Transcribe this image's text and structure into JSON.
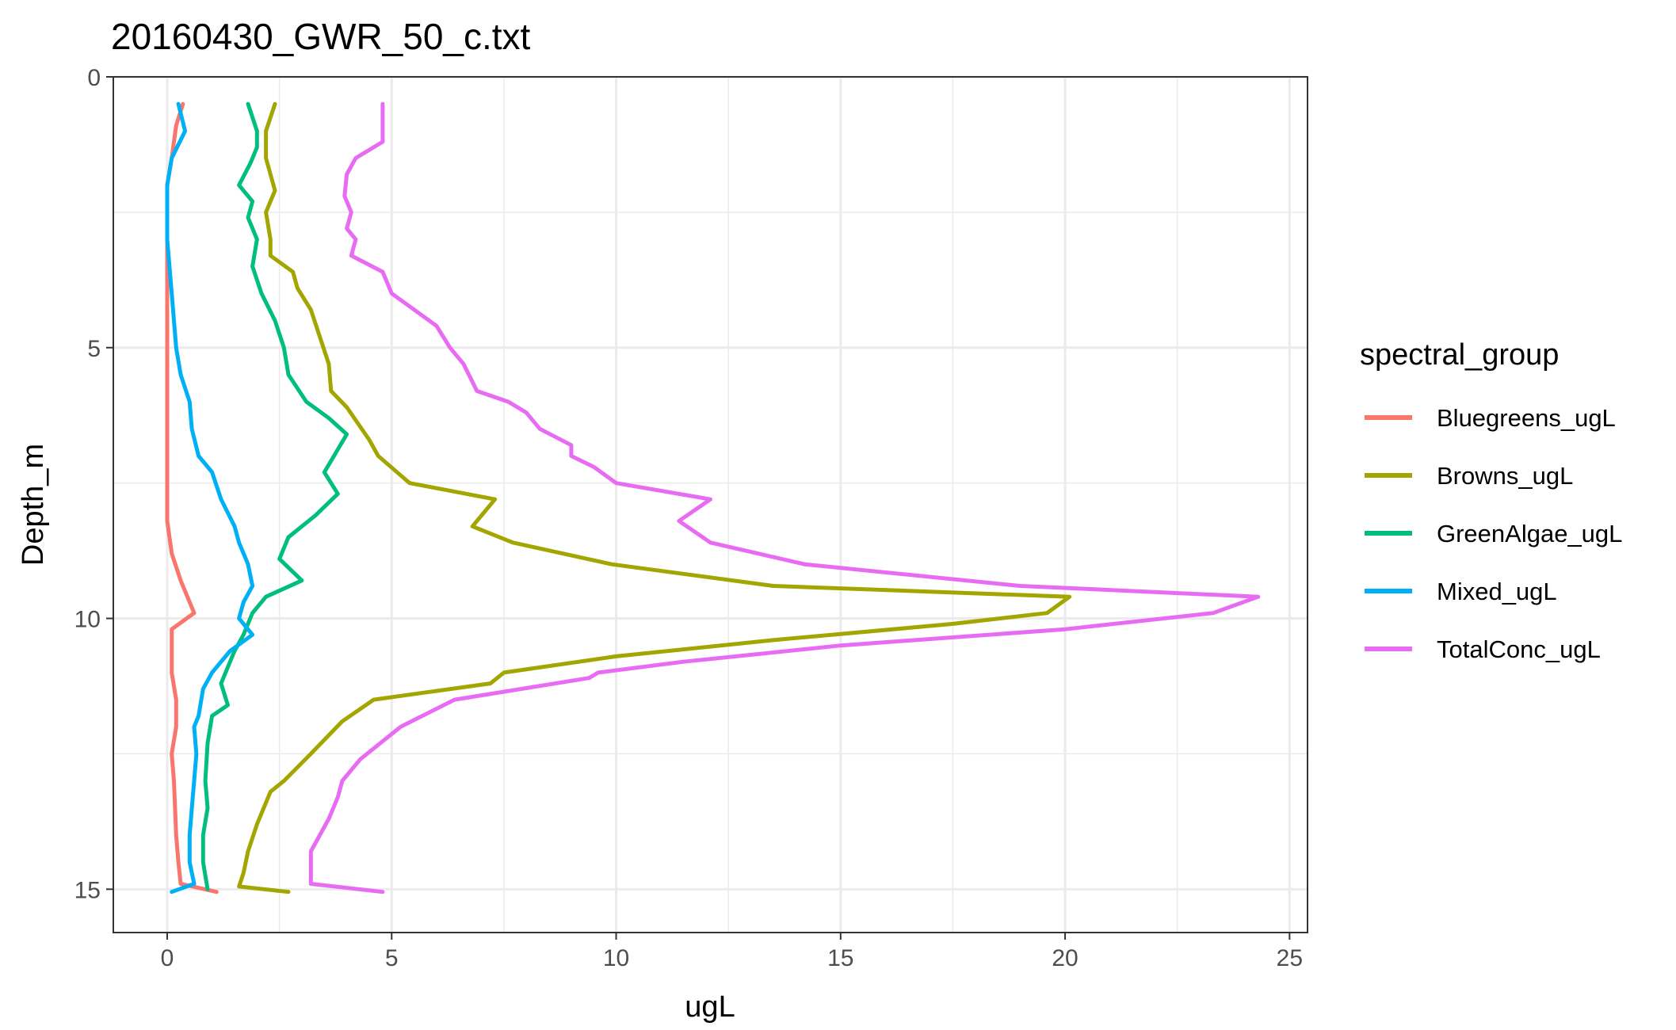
{
  "chart_data": {
    "type": "line",
    "title": "20160430_GWR_50_c.txt",
    "xlabel": "ugL",
    "ylabel": "Depth_m",
    "xlim": [
      -1.2,
      25.4
    ],
    "ylim": [
      0,
      15.8
    ],
    "y_reversed": true,
    "x_ticks": [
      0,
      5,
      10,
      15,
      20,
      25
    ],
    "y_ticks": [
      0,
      5,
      10,
      15
    ],
    "grid": true,
    "legend": {
      "title": "spectral_group",
      "position": "right"
    },
    "series": [
      {
        "name": "Bluegreens_ugL",
        "color": "#F8766D",
        "points": [
          [
            0.35,
            0.5
          ],
          [
            0.2,
            0.9
          ],
          [
            0.1,
            1.5
          ],
          [
            0.0,
            2.0
          ],
          [
            0.0,
            3.0
          ],
          [
            0.0,
            4.0
          ],
          [
            0.0,
            5.0
          ],
          [
            0.0,
            6.0
          ],
          [
            0.0,
            7.0
          ],
          [
            0.0,
            8.2
          ],
          [
            0.1,
            8.8
          ],
          [
            0.3,
            9.3
          ],
          [
            0.6,
            9.9
          ],
          [
            0.1,
            10.2
          ],
          [
            0.1,
            11.0
          ],
          [
            0.2,
            11.5
          ],
          [
            0.2,
            12.0
          ],
          [
            0.1,
            12.5
          ],
          [
            0.15,
            13.0
          ],
          [
            0.2,
            14.0
          ],
          [
            0.25,
            14.5
          ],
          [
            0.3,
            14.9
          ],
          [
            1.1,
            15.05
          ]
        ]
      },
      {
        "name": "Browns_ugL",
        "color": "#A3A500",
        "points": [
          [
            2.4,
            0.5
          ],
          [
            2.2,
            1.0
          ],
          [
            2.2,
            1.5
          ],
          [
            2.4,
            2.1
          ],
          [
            2.2,
            2.5
          ],
          [
            2.3,
            3.0
          ],
          [
            2.3,
            3.3
          ],
          [
            2.8,
            3.6
          ],
          [
            2.9,
            3.9
          ],
          [
            3.2,
            4.3
          ],
          [
            3.4,
            4.8
          ],
          [
            3.6,
            5.3
          ],
          [
            3.65,
            5.8
          ],
          [
            4.0,
            6.1
          ],
          [
            4.5,
            6.7
          ],
          [
            4.7,
            7.0
          ],
          [
            5.4,
            7.5
          ],
          [
            7.3,
            7.8
          ],
          [
            6.8,
            8.3
          ],
          [
            7.7,
            8.6
          ],
          [
            9.9,
            9.0
          ],
          [
            13.5,
            9.4
          ],
          [
            20.1,
            9.6
          ],
          [
            19.6,
            9.9
          ],
          [
            17.5,
            10.1
          ],
          [
            13.5,
            10.4
          ],
          [
            10.0,
            10.7
          ],
          [
            7.5,
            11.0
          ],
          [
            7.2,
            11.2
          ],
          [
            4.6,
            11.5
          ],
          [
            3.9,
            11.9
          ],
          [
            3.2,
            12.5
          ],
          [
            2.6,
            13.0
          ],
          [
            2.3,
            13.2
          ],
          [
            2.0,
            13.8
          ],
          [
            1.8,
            14.3
          ],
          [
            1.7,
            14.7
          ],
          [
            1.6,
            14.95
          ],
          [
            2.7,
            15.05
          ]
        ]
      },
      {
        "name": "GreenAlgae_ugL",
        "color": "#00BF7D",
        "points": [
          [
            1.8,
            0.5
          ],
          [
            2.0,
            1.0
          ],
          [
            2.0,
            1.3
          ],
          [
            1.85,
            1.6
          ],
          [
            1.6,
            2.0
          ],
          [
            1.9,
            2.3
          ],
          [
            1.8,
            2.6
          ],
          [
            2.0,
            3.0
          ],
          [
            1.9,
            3.5
          ],
          [
            2.1,
            4.0
          ],
          [
            2.4,
            4.5
          ],
          [
            2.6,
            5.0
          ],
          [
            2.7,
            5.5
          ],
          [
            3.1,
            6.0
          ],
          [
            3.6,
            6.3
          ],
          [
            4.0,
            6.6
          ],
          [
            3.5,
            7.3
          ],
          [
            3.8,
            7.7
          ],
          [
            3.3,
            8.1
          ],
          [
            2.7,
            8.5
          ],
          [
            2.5,
            8.9
          ],
          [
            3.0,
            9.3
          ],
          [
            2.2,
            9.6
          ],
          [
            1.9,
            9.9
          ],
          [
            1.7,
            10.3
          ],
          [
            1.5,
            10.6
          ],
          [
            1.2,
            11.2
          ],
          [
            1.35,
            11.6
          ],
          [
            1.0,
            11.8
          ],
          [
            0.9,
            12.3
          ],
          [
            0.85,
            13.0
          ],
          [
            0.9,
            13.5
          ],
          [
            0.8,
            14.0
          ],
          [
            0.8,
            14.5
          ],
          [
            0.9,
            15.0
          ]
        ]
      },
      {
        "name": "Mixed_ugL",
        "color": "#00B0F6",
        "points": [
          [
            0.25,
            0.5
          ],
          [
            0.4,
            1.0
          ],
          [
            0.1,
            1.5
          ],
          [
            0.0,
            2.0
          ],
          [
            0.0,
            3.0
          ],
          [
            0.1,
            4.0
          ],
          [
            0.2,
            5.0
          ],
          [
            0.3,
            5.5
          ],
          [
            0.5,
            6.0
          ],
          [
            0.55,
            6.5
          ],
          [
            0.7,
            7.0
          ],
          [
            1.0,
            7.3
          ],
          [
            1.2,
            7.8
          ],
          [
            1.5,
            8.3
          ],
          [
            1.6,
            8.6
          ],
          [
            1.8,
            9.0
          ],
          [
            1.9,
            9.4
          ],
          [
            1.7,
            9.7
          ],
          [
            1.6,
            10.0
          ],
          [
            1.9,
            10.3
          ],
          [
            1.4,
            10.6
          ],
          [
            1.0,
            11.0
          ],
          [
            0.8,
            11.3
          ],
          [
            0.7,
            11.8
          ],
          [
            0.6,
            12.0
          ],
          [
            0.65,
            12.5
          ],
          [
            0.6,
            13.0
          ],
          [
            0.55,
            13.5
          ],
          [
            0.5,
            14.0
          ],
          [
            0.5,
            14.5
          ],
          [
            0.6,
            14.9
          ],
          [
            0.1,
            15.05
          ]
        ]
      },
      {
        "name": "TotalConc_ugL",
        "color": "#E76BF3",
        "points": [
          [
            4.8,
            0.5
          ],
          [
            4.8,
            1.0
          ],
          [
            4.8,
            1.2
          ],
          [
            4.2,
            1.5
          ],
          [
            4.0,
            1.8
          ],
          [
            3.95,
            2.2
          ],
          [
            4.1,
            2.5
          ],
          [
            4.0,
            2.8
          ],
          [
            4.2,
            3.0
          ],
          [
            4.1,
            3.3
          ],
          [
            4.8,
            3.6
          ],
          [
            5.0,
            4.0
          ],
          [
            5.5,
            4.3
          ],
          [
            6.0,
            4.6
          ],
          [
            6.3,
            5.0
          ],
          [
            6.6,
            5.3
          ],
          [
            6.9,
            5.8
          ],
          [
            7.6,
            6.0
          ],
          [
            8.0,
            6.2
          ],
          [
            8.3,
            6.5
          ],
          [
            9.0,
            6.8
          ],
          [
            9.0,
            7.0
          ],
          [
            9.5,
            7.2
          ],
          [
            10.0,
            7.5
          ],
          [
            12.1,
            7.8
          ],
          [
            11.4,
            8.2
          ],
          [
            12.1,
            8.6
          ],
          [
            14.2,
            9.0
          ],
          [
            19.0,
            9.4
          ],
          [
            24.3,
            9.6
          ],
          [
            23.3,
            9.9
          ],
          [
            20.0,
            10.2
          ],
          [
            15.0,
            10.5
          ],
          [
            11.5,
            10.8
          ],
          [
            9.6,
            11.0
          ],
          [
            9.4,
            11.1
          ],
          [
            6.4,
            11.5
          ],
          [
            5.2,
            12.0
          ],
          [
            4.3,
            12.6
          ],
          [
            3.9,
            13.0
          ],
          [
            3.8,
            13.3
          ],
          [
            3.6,
            13.7
          ],
          [
            3.2,
            14.3
          ],
          [
            3.2,
            14.9
          ],
          [
            4.8,
            15.05
          ]
        ]
      }
    ]
  }
}
